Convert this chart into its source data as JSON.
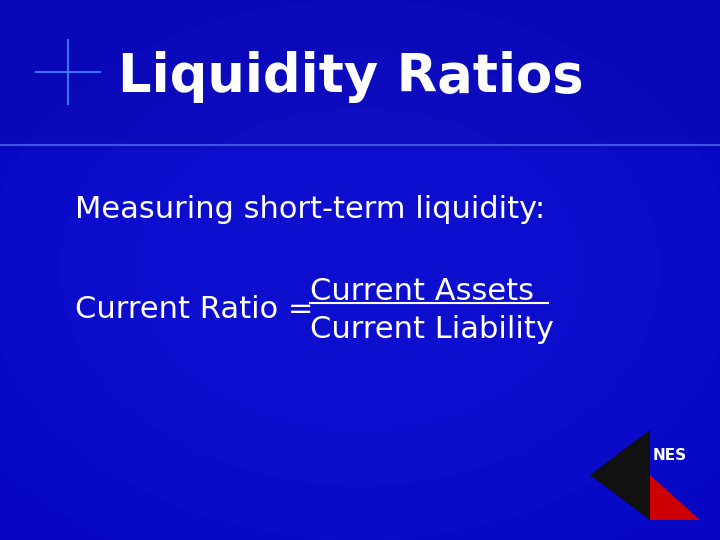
{
  "title": "Liquidity Ratios",
  "subtitle": "Measuring short-term liquidity:",
  "ratio_label": "Current Ratio =",
  "numerator": "Current Assets",
  "denominator": "Current Liability",
  "bg_color": "#000099",
  "text_color": "#ffffff",
  "title_fontsize": 38,
  "body_fontsize": 22,
  "nes_text": "NES",
  "diamond_black": "#111111",
  "diamond_red": "#cc0000",
  "star_color": "#4488ff"
}
